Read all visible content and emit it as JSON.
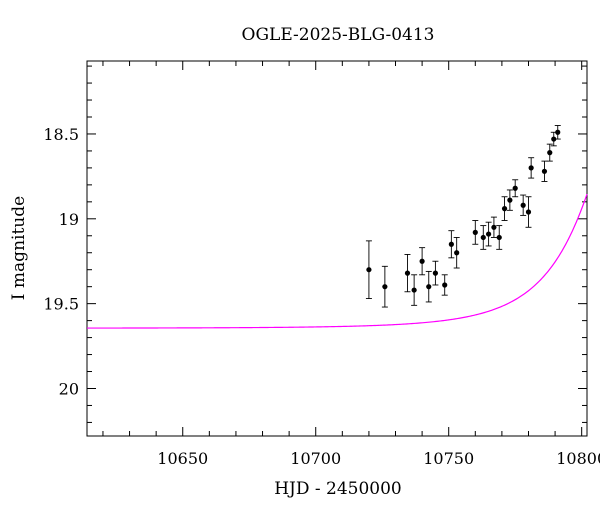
{
  "chart_data": {
    "type": "scatter",
    "title": "OGLE-2025-BLG-0413",
    "xlabel": "HJD - 2450000",
    "ylabel": "I magnitude",
    "xlim": [
      10614,
      10802
    ],
    "ylim": [
      20.28,
      18.07
    ],
    "y_inverted": true,
    "grid": false,
    "x_ticks": [
      10650,
      10700,
      10750,
      10800
    ],
    "x_tick_labels": [
      "10650",
      "10700",
      "10750",
      "10800"
    ],
    "y_ticks": [
      18.5,
      19,
      19.5,
      20
    ],
    "y_tick_labels": [
      "18.5",
      "19",
      "19.5",
      "20"
    ],
    "colors": {
      "points": "#000000",
      "model": "#ff00ff"
    },
    "series": [
      {
        "type": "scatter_with_errorbars",
        "points": [
          {
            "x": 10720.0,
            "y": 19.3,
            "err": 0.17
          },
          {
            "x": 10726.0,
            "y": 19.4,
            "err": 0.12
          },
          {
            "x": 10734.5,
            "y": 19.32,
            "err": 0.11
          },
          {
            "x": 10737.0,
            "y": 19.42,
            "err": 0.09
          },
          {
            "x": 10740.0,
            "y": 19.25,
            "err": 0.08
          },
          {
            "x": 10742.5,
            "y": 19.4,
            "err": 0.09
          },
          {
            "x": 10745.0,
            "y": 19.32,
            "err": 0.07
          },
          {
            "x": 10748.5,
            "y": 19.39,
            "err": 0.06
          },
          {
            "x": 10751.0,
            "y": 19.15,
            "err": 0.08
          },
          {
            "x": 10753.0,
            "y": 19.2,
            "err": 0.09
          },
          {
            "x": 10760.0,
            "y": 19.08,
            "err": 0.07
          },
          {
            "x": 10763.0,
            "y": 19.11,
            "err": 0.07
          },
          {
            "x": 10765.0,
            "y": 19.09,
            "err": 0.07
          },
          {
            "x": 10767.0,
            "y": 19.05,
            "err": 0.06
          },
          {
            "x": 10769.0,
            "y": 19.11,
            "err": 0.07
          },
          {
            "x": 10771.0,
            "y": 18.94,
            "err": 0.07
          },
          {
            "x": 10773.0,
            "y": 18.89,
            "err": 0.06
          },
          {
            "x": 10775.0,
            "y": 18.82,
            "err": 0.05
          },
          {
            "x": 10778.0,
            "y": 18.92,
            "err": 0.06
          },
          {
            "x": 10780.0,
            "y": 18.96,
            "err": 0.09
          },
          {
            "x": 10781.0,
            "y": 18.7,
            "err": 0.06
          },
          {
            "x": 10786.0,
            "y": 18.72,
            "err": 0.06
          },
          {
            "x": 10788.0,
            "y": 18.61,
            "err": 0.05
          },
          {
            "x": 10789.5,
            "y": 18.53,
            "err": 0.04
          },
          {
            "x": 10791.0,
            "y": 18.49,
            "err": 0.04
          }
        ]
      },
      {
        "type": "model_curve",
        "function": "point-lens microlensing",
        "parameters": {
          "t0": 10815,
          "u0": 0.31,
          "tE": 30,
          "I_baseline": 19.645,
          "blend_fraction": 1.0
        }
      }
    ]
  }
}
